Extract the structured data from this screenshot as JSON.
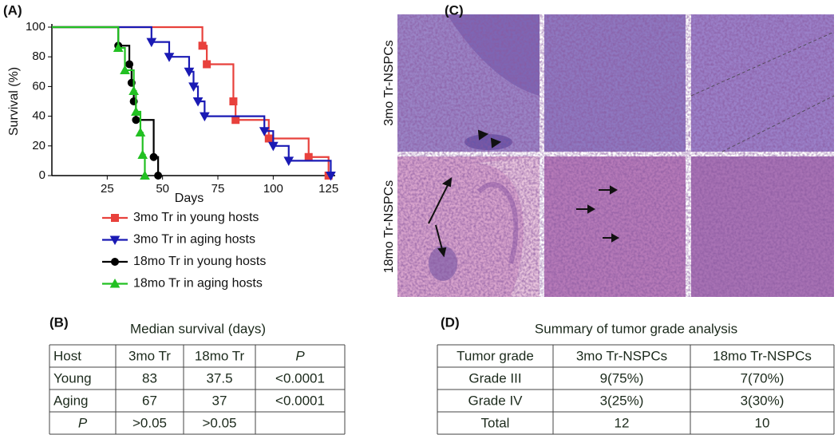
{
  "chart_data": {
    "type": "step",
    "panel_label": "(A)",
    "x_label": "Days",
    "y_label": "Survival (%)",
    "xlim": [
      0,
      128
    ],
    "ylim": [
      0,
      100
    ],
    "xticks": [
      25,
      50,
      75,
      100,
      125
    ],
    "yticks": [
      0,
      20,
      40,
      60,
      80,
      100
    ],
    "legend": "below",
    "series": [
      {
        "name": "3mo Tr in young hosts",
        "color": "#e8413c",
        "marker": "square",
        "x": [
          0,
          68,
          70,
          82,
          83,
          98,
          116,
          125
        ],
        "values": [
          100,
          87.5,
          75,
          50,
          37.5,
          25,
          12.5,
          0
        ]
      },
      {
        "name": "3mo Tr in aging hosts",
        "color": "#1a1ab4",
        "marker": "triangle-down",
        "x": [
          0,
          45,
          53,
          62,
          64,
          66,
          69,
          96,
          100,
          107,
          126
        ],
        "values": [
          100,
          90,
          80,
          70,
          60,
          50,
          40,
          30,
          20,
          10,
          0
        ]
      },
      {
        "name": "18mo Tr in young hosts",
        "color": "#000000",
        "marker": "circle",
        "x": [
          0,
          30,
          35,
          36,
          37,
          38,
          46,
          48
        ],
        "values": [
          100,
          87.5,
          75,
          62.5,
          50,
          37.5,
          12.5,
          0
        ]
      },
      {
        "name": "18mo Tr in aging hosts",
        "color": "#22c022",
        "marker": "triangle-up",
        "x": [
          0,
          30,
          33,
          37,
          38,
          40,
          41,
          42
        ],
        "values": [
          100,
          86,
          71,
          57,
          43,
          29,
          14,
          0
        ]
      }
    ]
  },
  "figure": {
    "panel_b": {
      "label": "(B)",
      "title": "Median survival (days)",
      "header": [
        "Host",
        "3mo Tr",
        "18mo Tr",
        "P"
      ],
      "rows": [
        [
          "Young",
          "83",
          "37.5",
          "<0.0001"
        ],
        [
          "Aging",
          "67",
          "37",
          "<0.0001"
        ],
        [
          "P",
          ">0.05",
          ">0.05",
          ""
        ]
      ]
    },
    "panel_c": {
      "label": "(C)",
      "row_labels": [
        "3mo Tr-NSPCs",
        "18mo Tr-NSPCs"
      ]
    },
    "panel_d": {
      "label": "(D)",
      "title": "Summary of tumor grade analysis",
      "header": [
        "Tumor grade",
        "3mo Tr-NSPCs",
        "18mo Tr-NSPCs"
      ],
      "rows": [
        [
          "Grade III",
          "9(75%)",
          "7(70%)"
        ],
        [
          "Grade IV",
          "3(25%)",
          "3(30%)"
        ],
        [
          "Total",
          "12",
          "10"
        ]
      ]
    }
  }
}
